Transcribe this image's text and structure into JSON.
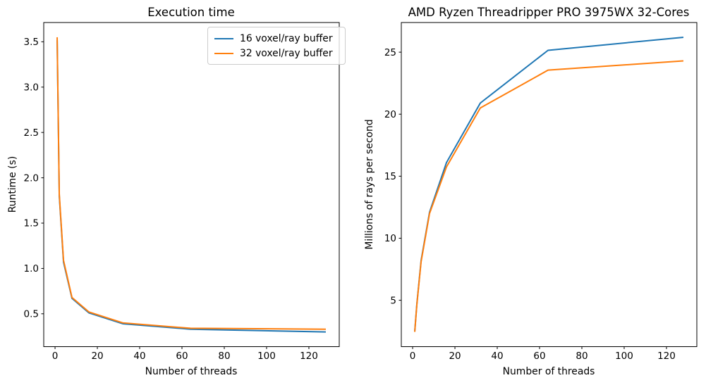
{
  "figure": {
    "background": "#ffffff",
    "text_color": "#000000"
  },
  "chart_data": [
    {
      "type": "line",
      "title": "Execution time",
      "xlabel": "Number of threads",
      "ylabel": "Runtime (s)",
      "x": [
        1,
        2,
        4,
        8,
        16,
        32,
        64,
        128
      ],
      "series": [
        {
          "name": "16 voxel/ray buffer",
          "color": "#1f77b4",
          "values": [
            3.52,
            1.8,
            1.07,
            0.67,
            0.51,
            0.39,
            0.33,
            0.3
          ]
        },
        {
          "name": "32 voxel/ray buffer",
          "color": "#ff7f0e",
          "values": [
            3.55,
            1.82,
            1.09,
            0.68,
            0.52,
            0.4,
            0.34,
            0.33
          ]
        }
      ],
      "xlim": [
        -5.35,
        134.35
      ],
      "ylim": [
        0.1375,
        3.7125
      ],
      "xticks": [
        0,
        20,
        40,
        60,
        80,
        100,
        120
      ],
      "xtick_labels": [
        "0",
        "20",
        "40",
        "60",
        "80",
        "100",
        "120"
      ],
      "yticks": [
        0.5,
        1.0,
        1.5,
        2.0,
        2.5,
        3.0,
        3.5
      ],
      "ytick_labels": [
        "0.5",
        "1.0",
        "1.5",
        "2.0",
        "2.5",
        "3.0",
        "3.5"
      ],
      "grid": false,
      "legend": {
        "position": "upper right",
        "entries": [
          "16 voxel/ray buffer",
          "32 voxel/ray buffer"
        ]
      }
    },
    {
      "type": "line",
      "title": "AMD Ryzen Threadripper PRO 3975WX 32-Cores",
      "xlabel": "Number of threads",
      "ylabel": "Millions of rays per second",
      "x": [
        1,
        2,
        4,
        8,
        16,
        32,
        64,
        128
      ],
      "series": [
        {
          "name": "16 voxel/ray buffer",
          "color": "#1f77b4",
          "values": [
            2.5,
            4.7,
            8.2,
            12.1,
            16.1,
            20.9,
            25.15,
            26.2
          ]
        },
        {
          "name": "32 voxel/ray buffer",
          "color": "#ff7f0e",
          "values": [
            2.45,
            4.65,
            8.1,
            12.0,
            15.75,
            20.5,
            23.55,
            24.3
          ]
        }
      ],
      "xlim": [
        -5.35,
        134.35
      ],
      "ylim": [
        1.26,
        27.39
      ],
      "xticks": [
        0,
        20,
        40,
        60,
        80,
        100,
        120
      ],
      "xtick_labels": [
        "0",
        "20",
        "40",
        "60",
        "80",
        "100",
        "120"
      ],
      "yticks": [
        5,
        10,
        15,
        20,
        25
      ],
      "ytick_labels": [
        "5",
        "10",
        "15",
        "20",
        "25"
      ],
      "grid": false,
      "legend": null
    }
  ]
}
